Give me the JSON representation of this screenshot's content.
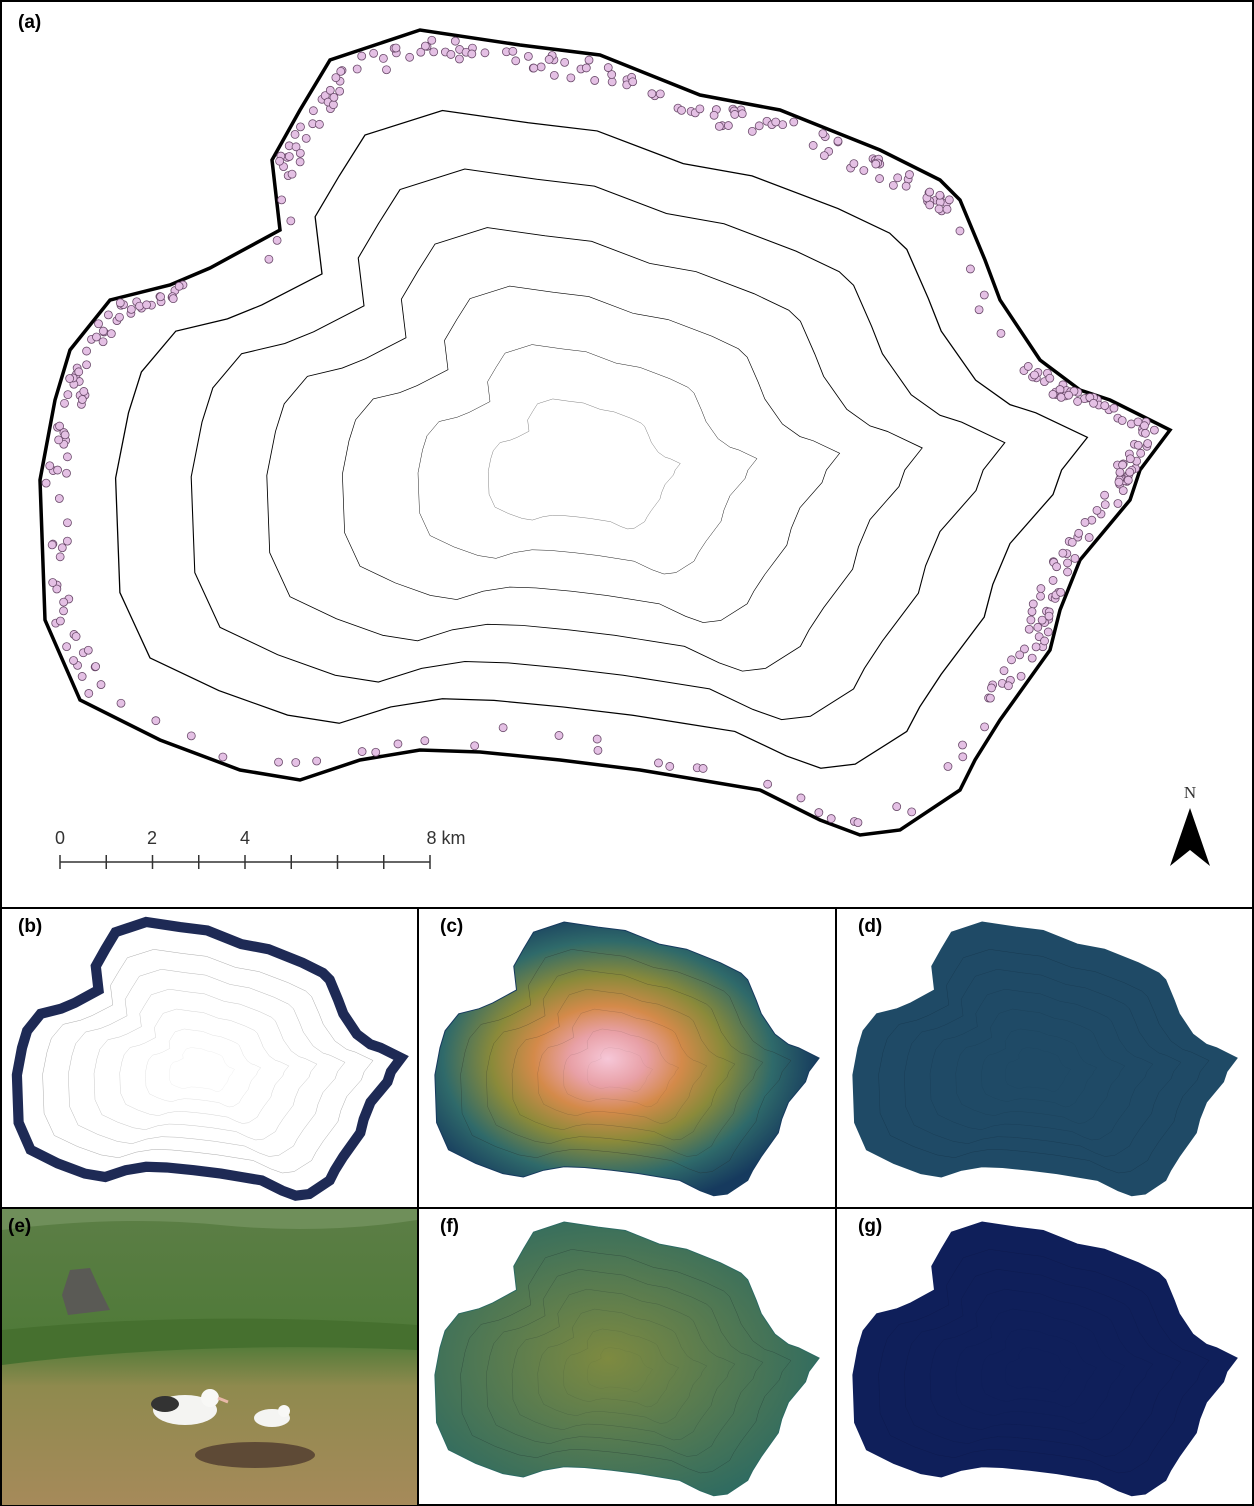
{
  "panels": [
    {
      "label": "(a)"
    },
    {
      "label": "(b)"
    },
    {
      "label": "(c)"
    },
    {
      "label": "(d)"
    },
    {
      "label": "(e)"
    },
    {
      "label": "(f)"
    },
    {
      "label": "(g)"
    }
  ],
  "scale_bar": {
    "labels": [
      "0",
      "2",
      "4",
      "8 km"
    ]
  },
  "north_arrow": {
    "label": "N"
  }
}
